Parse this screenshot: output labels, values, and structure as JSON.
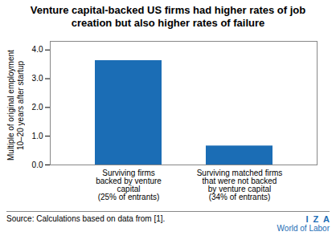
{
  "chart_data": {
    "type": "bar",
    "title": "Venture capital-backed US firms had higher rates of job\ncreation but also higher rates of failure",
    "categories": [
      "Surviving firms\nbacked by venture\ncapital\n(25% of entrants)",
      "Surviving matched firms\nthat were not backed\nby venture capital\n(34% of entrants)"
    ],
    "values": [
      3.63,
      0.66
    ],
    "color": "#1B6DB5",
    "ylabel": "Multiple of original employment\n10–20 years after startup",
    "ylim": [
      0,
      4.3
    ],
    "yticks": [
      0,
      1,
      2,
      3,
      4
    ],
    "grid": false,
    "caption": "Source: Calculations based on data from [1].",
    "annotations": [
      "I  Z  A",
      "World of Labor"
    ]
  }
}
